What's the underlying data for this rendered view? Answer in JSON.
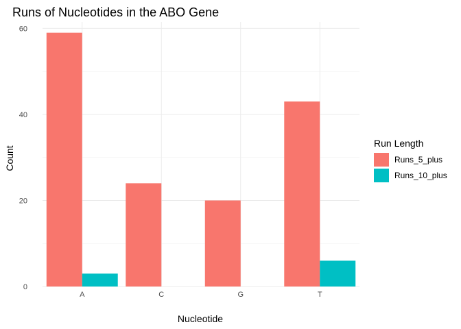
{
  "chart_data": {
    "type": "bar",
    "title": "Runs of Nucleotides in the ABO Gene",
    "xlabel": "Nucleotide",
    "ylabel": "Count",
    "categories": [
      "A",
      "C",
      "G",
      "T"
    ],
    "series": [
      {
        "name": "Runs_5_plus",
        "values": [
          59,
          24,
          20,
          43
        ],
        "color": "#F8766D"
      },
      {
        "name": "Runs_10_plus",
        "values": [
          3,
          0,
          0,
          6
        ],
        "color": "#00BFC4"
      }
    ],
    "ylim": [
      0,
      61.5
    ],
    "yticks": [
      0,
      20,
      40,
      60
    ],
    "legend": {
      "title": "Run Length",
      "position": "right"
    },
    "grid": true
  }
}
